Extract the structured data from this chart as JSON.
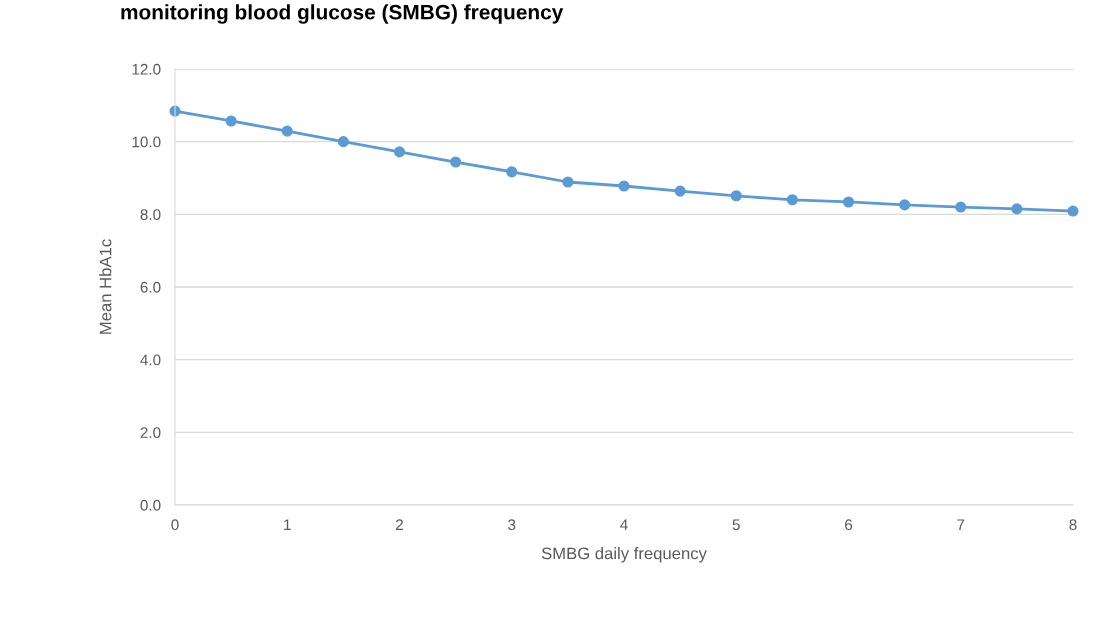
{
  "chart_data": {
    "type": "line",
    "title": "monitoring blood glucose (SMBG) frequency",
    "xlabel": "SMBG daily frequency",
    "ylabel": "Mean HbA1c",
    "x": [
      0,
      0.5,
      1,
      1.5,
      2,
      2.5,
      3,
      3.5,
      4,
      4.5,
      5,
      5.5,
      6,
      6.5,
      7,
      7.5,
      8
    ],
    "series": [
      {
        "color": "#5b9bd5",
        "values": [
          10.84,
          10.57,
          10.29,
          10.0,
          9.72,
          9.44,
          9.17,
          8.89,
          8.78,
          8.64,
          8.51,
          8.4,
          8.34,
          8.26,
          8.2,
          8.15,
          8.09
        ]
      }
    ],
    "xlim": [
      0,
      8
    ],
    "xticks": [
      0,
      1,
      2,
      3,
      4,
      5,
      6,
      7,
      8
    ],
    "ylim": [
      0,
      12
    ],
    "yticks": [
      {
        "value": 0,
        "label": "0.0"
      },
      {
        "value": 2,
        "label": "2.0"
      },
      {
        "value": 4,
        "label": "4.0"
      },
      {
        "value": 6,
        "label": "6.0"
      },
      {
        "value": 8,
        "label": "8.0"
      },
      {
        "value": 10,
        "label": "10.0"
      },
      {
        "value": 12,
        "label": "12.0"
      }
    ],
    "grid": "y",
    "marker": "circle",
    "line_style": "solid"
  }
}
